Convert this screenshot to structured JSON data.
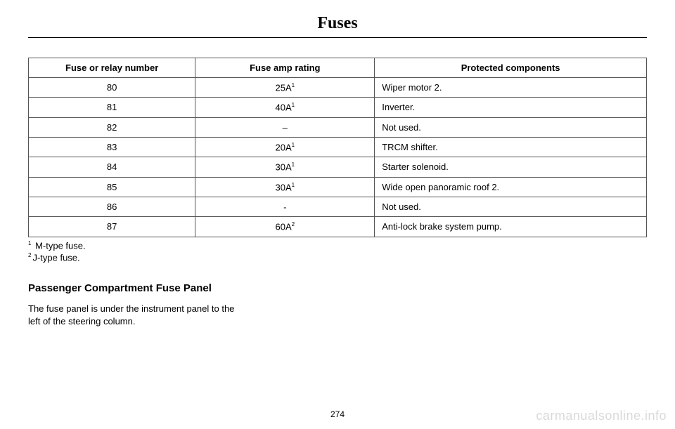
{
  "page_title": "Fuses",
  "table": {
    "headers": [
      "Fuse or relay number",
      "Fuse amp rating",
      "Protected components"
    ],
    "rows": [
      {
        "num": "80",
        "rating": "25A",
        "sup": "1",
        "comp": "Wiper motor 2."
      },
      {
        "num": "81",
        "rating": "40A",
        "sup": "1",
        "comp": "Inverter."
      },
      {
        "num": "82",
        "rating": "–",
        "sup": "",
        "comp": "Not used."
      },
      {
        "num": "83",
        "rating": "20A",
        "sup": "1",
        "comp": "TRCM shifter."
      },
      {
        "num": "84",
        "rating": "30A",
        "sup": "1",
        "comp": "Starter solenoid."
      },
      {
        "num": "85",
        "rating": "30A",
        "sup": "1",
        "comp": "Wide open panoramic roof 2."
      },
      {
        "num": "86",
        "rating": "-",
        "sup": "",
        "comp": "Not used."
      },
      {
        "num": "87",
        "rating": "60A",
        "sup": "2",
        "comp": "Anti-lock brake system pump."
      }
    ]
  },
  "footnotes": [
    {
      "sup": "1",
      "text": " M-type fuse."
    },
    {
      "sup": "2",
      "text": "J-type fuse."
    }
  ],
  "section": {
    "heading": "Passenger Compartment Fuse Panel",
    "body": "The fuse panel is under the instrument panel to the left of the steering column."
  },
  "page_number": "274",
  "watermark": "carmanualsonline.info"
}
